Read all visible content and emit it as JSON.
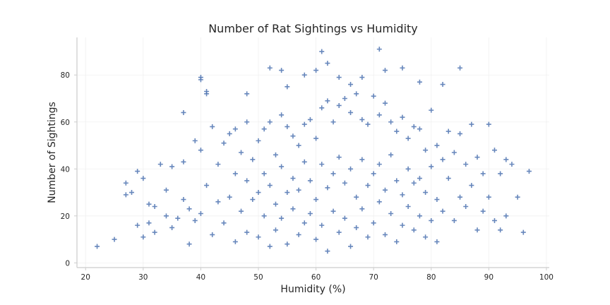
{
  "chart_data": {
    "type": "scatter",
    "title": "Number of Rat Sightings vs Humidity",
    "xlabel": "Humidity (%)",
    "ylabel": "Number of Sightings",
    "xlim": [
      18.5,
      100.5
    ],
    "ylim": [
      -2,
      96
    ],
    "xticks": [
      20,
      30,
      40,
      50,
      60,
      70,
      80,
      90,
      100
    ],
    "yticks": [
      0,
      20,
      40,
      60,
      80
    ],
    "grid": true,
    "marker": "+",
    "marker_color": "#4c72b0",
    "x": [
      22,
      25,
      27,
      27,
      28,
      29,
      29,
      30,
      30,
      31,
      31,
      32,
      32,
      33,
      34,
      34,
      35,
      35,
      36,
      37,
      37,
      38,
      38,
      39,
      39,
      40,
      40,
      40,
      41,
      41,
      42,
      42,
      43,
      43,
      44,
      44,
      45,
      45,
      46,
      46,
      47,
      47,
      48,
      48,
      48,
      49,
      49,
      50,
      50,
      50,
      51,
      51,
      51,
      52,
      52,
      52,
      53,
      53,
      53,
      54,
      54,
      54,
      55,
      55,
      55,
      56,
      56,
      56,
      57,
      57,
      57,
      58,
      58,
      58,
      59,
      59,
      59,
      60,
      60,
      60,
      61,
      61,
      61,
      62,
      62,
      62,
      63,
      63,
      63,
      64,
      64,
      64,
      65,
      65,
      65,
      66,
      66,
      66,
      67,
      67,
      67,
      68,
      68,
      68,
      69,
      69,
      69,
      70,
      70,
      70,
      71,
      71,
      71,
      72,
      72,
      72,
      73,
      73,
      73,
      74,
      74,
      74,
      75,
      75,
      75,
      76,
      76,
      76,
      77,
      77,
      77,
      78,
      78,
      78,
      79,
      79,
      79,
      80,
      80,
      80,
      81,
      81,
      81,
      82,
      82,
      83,
      83,
      84,
      84,
      85,
      85,
      86,
      86,
      87,
      87,
      88,
      88,
      89,
      89,
      90,
      90,
      91,
      91,
      92,
      92,
      93,
      93,
      94,
      95,
      96,
      97,
      61,
      62,
      71,
      72,
      52,
      54,
      40,
      41,
      37,
      48,
      85,
      60,
      58,
      55,
      66,
      68,
      64,
      78,
      82,
      46,
      75
    ],
    "y": [
      7,
      10,
      34,
      29,
      30,
      39,
      16,
      36,
      11,
      25,
      17,
      24,
      13,
      42,
      31,
      20,
      41,
      15,
      19,
      64,
      27,
      23,
      8,
      52,
      18,
      79,
      48,
      21,
      73,
      33,
      58,
      12,
      42,
      26,
      51,
      17,
      55,
      28,
      38,
      9,
      47,
      22,
      60,
      35,
      13,
      44,
      27,
      52,
      30,
      11,
      57,
      38,
      20,
      60,
      33,
      7,
      46,
      25,
      14,
      63,
      41,
      19,
      58,
      30,
      8,
      54,
      36,
      23,
      50,
      31,
      12,
      59,
      43,
      17,
      61,
      35,
      21,
      53,
      27,
      10,
      66,
      42,
      16,
      69,
      32,
      5,
      60,
      38,
      22,
      67,
      45,
      13,
      70,
      34,
      19,
      64,
      40,
      7,
      72,
      28,
      15,
      61,
      44,
      23,
      59,
      33,
      11,
      71,
      38,
      17,
      63,
      42,
      26,
      68,
      31,
      12,
      60,
      46,
      21,
      56,
      35,
      9,
      62,
      29,
      16,
      53,
      40,
      24,
      58,
      34,
      14,
      57,
      36,
      20,
      48,
      30,
      11,
      65,
      41,
      18,
      50,
      27,
      9,
      44,
      22,
      56,
      36,
      47,
      18,
      55,
      28,
      42,
      24,
      59,
      33,
      45,
      14,
      38,
      22,
      59,
      28,
      48,
      18,
      38,
      14,
      44,
      20,
      42,
      28,
      13,
      39,
      90,
      85,
      91,
      82,
      83,
      82,
      78,
      72,
      43,
      72,
      83,
      82,
      80,
      75,
      76,
      79,
      79,
      77,
      76,
      57,
      83
    ]
  }
}
